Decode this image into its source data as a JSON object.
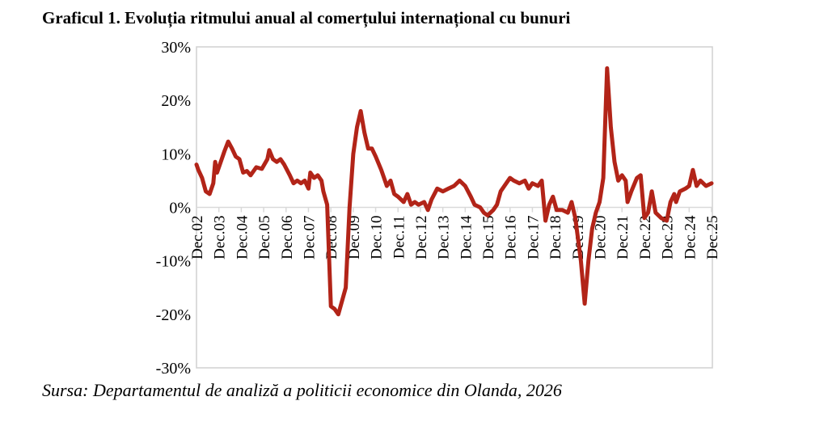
{
  "title": "Graficul 1. Evoluția ritmului anual al comerțului internațional cu bunuri",
  "source": "Sursa: Departamentul de analiză a politicii economice din Olanda, 2026",
  "colors": {
    "line": "#b22418",
    "frame": "#d0d0d0",
    "axis": "#d9d9d9"
  },
  "chart_data": {
    "type": "line",
    "title": "Graficul 1. Evoluția ritmului anual al comerțului internațional cu bunuri",
    "xlabel": "",
    "ylabel": "",
    "ylim": [
      -30,
      30
    ],
    "yticks": [
      30,
      20,
      10,
      0,
      -10,
      -20,
      -30
    ],
    "ytick_labels": [
      "30%",
      "20%",
      "10%",
      "0%",
      "-10%",
      "-20%",
      "-30%"
    ],
    "xlim": [
      "2002-12",
      "2025-12"
    ],
    "xtick_labels": [
      "Dec.02",
      "Dec.03",
      "Dec.04",
      "Dec.05",
      "Dec.06",
      "Dec.07",
      "Dec.08",
      "Dec.09",
      "Dec.10",
      "Dec.11",
      "Dec.12",
      "Dec.13",
      "Dec.14",
      "Dec.15",
      "Dec.16",
      "Dec.17",
      "Dec.18",
      "Dec.19",
      "Dec.20",
      "Dec.21",
      "Dec.22",
      "Dec.23",
      "Dec.24",
      "Dec.25"
    ],
    "grid": false,
    "points": [
      [
        "2002-12",
        8.0
      ],
      [
        "2003-01",
        7.0
      ],
      [
        "2003-03",
        5.5
      ],
      [
        "2003-05",
        3.0
      ],
      [
        "2003-07",
        2.5
      ],
      [
        "2003-09",
        4.5
      ],
      [
        "2003-10",
        8.5
      ],
      [
        "2003-11",
        6.5
      ],
      [
        "2004-01",
        8.5
      ],
      [
        "2004-03",
        10.5
      ],
      [
        "2004-05",
        12.3
      ],
      [
        "2004-07",
        11.0
      ],
      [
        "2004-09",
        9.5
      ],
      [
        "2004-11",
        9.0
      ],
      [
        "2005-01",
        6.5
      ],
      [
        "2005-03",
        6.8
      ],
      [
        "2005-05",
        6.0
      ],
      [
        "2005-08",
        7.5
      ],
      [
        "2005-11",
        7.2
      ],
      [
        "2006-02",
        9.0
      ],
      [
        "2006-03",
        10.7
      ],
      [
        "2006-05",
        9.0
      ],
      [
        "2006-07",
        8.5
      ],
      [
        "2006-09",
        9.0
      ],
      [
        "2006-11",
        8.0
      ],
      [
        "2007-02",
        6.0
      ],
      [
        "2007-04",
        4.5
      ],
      [
        "2007-06",
        5.0
      ],
      [
        "2007-08",
        4.5
      ],
      [
        "2007-10",
        5.0
      ],
      [
        "2007-12",
        3.5
      ],
      [
        "2008-01",
        6.5
      ],
      [
        "2008-03",
        5.5
      ],
      [
        "2008-05",
        6.0
      ],
      [
        "2008-07",
        5.0
      ],
      [
        "2008-08",
        3.0
      ],
      [
        "2008-10",
        0.5
      ],
      [
        "2008-12",
        -18.5
      ],
      [
        "2009-02",
        -19.0
      ],
      [
        "2009-04",
        -20.0
      ],
      [
        "2009-06",
        -17.5
      ],
      [
        "2009-08",
        -15.0
      ],
      [
        "2009-10",
        0.0
      ],
      [
        "2009-12",
        10.0
      ],
      [
        "2010-02",
        15.0
      ],
      [
        "2010-04",
        18.0
      ],
      [
        "2010-06",
        14.0
      ],
      [
        "2010-08",
        11.0
      ],
      [
        "2010-10",
        11.0
      ],
      [
        "2010-12",
        9.5
      ],
      [
        "2011-03",
        7.0
      ],
      [
        "2011-06",
        4.0
      ],
      [
        "2011-08",
        5.0
      ],
      [
        "2011-10",
        2.5
      ],
      [
        "2011-12",
        2.0
      ],
      [
        "2012-03",
        1.0
      ],
      [
        "2012-05",
        2.5
      ],
      [
        "2012-07",
        0.5
      ],
      [
        "2012-09",
        1.0
      ],
      [
        "2012-11",
        0.5
      ],
      [
        "2013-02",
        1.0
      ],
      [
        "2013-04",
        -0.5
      ],
      [
        "2013-06",
        1.5
      ],
      [
        "2013-09",
        3.5
      ],
      [
        "2013-12",
        3.0
      ],
      [
        "2014-03",
        3.5
      ],
      [
        "2014-06",
        4.0
      ],
      [
        "2014-09",
        5.0
      ],
      [
        "2014-12",
        4.0
      ],
      [
        "2015-03",
        2.0
      ],
      [
        "2015-05",
        0.5
      ],
      [
        "2015-08",
        0.0
      ],
      [
        "2015-10",
        -1.0
      ],
      [
        "2015-12",
        -1.5
      ],
      [
        "2016-03",
        -0.5
      ],
      [
        "2016-05",
        0.5
      ],
      [
        "2016-07",
        3.0
      ],
      [
        "2016-09",
        4.0
      ],
      [
        "2016-12",
        5.5
      ],
      [
        "2017-02",
        5.0
      ],
      [
        "2017-05",
        4.5
      ],
      [
        "2017-08",
        5.0
      ],
      [
        "2017-10",
        3.5
      ],
      [
        "2017-12",
        4.5
      ],
      [
        "2018-03",
        4.0
      ],
      [
        "2018-05",
        5.0
      ],
      [
        "2018-07",
        -2.5
      ],
      [
        "2018-09",
        0.5
      ],
      [
        "2018-11",
        2.0
      ],
      [
        "2019-01",
        -0.5
      ],
      [
        "2019-04",
        -0.5
      ],
      [
        "2019-07",
        -1.0
      ],
      [
        "2019-09",
        1.0
      ],
      [
        "2019-11",
        -2.0
      ],
      [
        "2020-02",
        -10.0
      ],
      [
        "2020-04",
        -18.0
      ],
      [
        "2020-06",
        -10.0
      ],
      [
        "2020-08",
        -4.0
      ],
      [
        "2020-10",
        -1.0
      ],
      [
        "2020-12",
        1.0
      ],
      [
        "2021-02",
        5.5
      ],
      [
        "2021-04",
        26.0
      ],
      [
        "2021-06",
        15.0
      ],
      [
        "2021-08",
        8.5
      ],
      [
        "2021-10",
        5.0
      ],
      [
        "2021-12",
        6.0
      ],
      [
        "2022-02",
        5.0
      ],
      [
        "2022-03",
        1.0
      ],
      [
        "2022-05",
        3.0
      ],
      [
        "2022-08",
        5.5
      ],
      [
        "2022-10",
        6.0
      ],
      [
        "2022-12",
        -2.0
      ],
      [
        "2023-02",
        -1.0
      ],
      [
        "2023-04",
        3.0
      ],
      [
        "2023-06",
        -1.0
      ],
      [
        "2023-09",
        -2.0
      ],
      [
        "2023-12",
        -2.5
      ],
      [
        "2024-02",
        1.0
      ],
      [
        "2024-04",
        2.5
      ],
      [
        "2024-05",
        1.0
      ],
      [
        "2024-07",
        3.0
      ],
      [
        "2024-10",
        3.5
      ],
      [
        "2024-12",
        4.0
      ],
      [
        "2025-02",
        7.0
      ],
      [
        "2025-04",
        4.0
      ],
      [
        "2025-06",
        5.0
      ],
      [
        "2025-09",
        4.0
      ],
      [
        "2025-12",
        4.5
      ]
    ]
  }
}
